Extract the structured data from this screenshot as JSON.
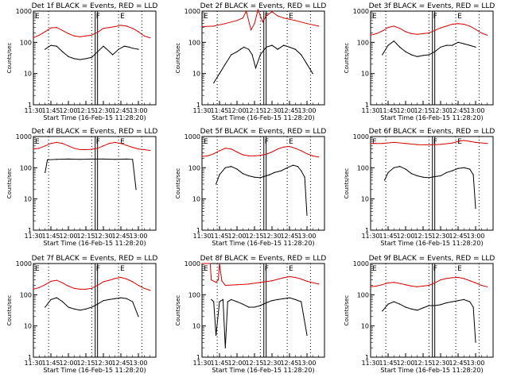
{
  "chart_data": {
    "type": "line",
    "y_scale": "log",
    "ylim": [
      1,
      1000
    ],
    "y_ticks": [
      "1",
      "10",
      "100",
      "1000"
    ],
    "x_ticks": [
      "11:30",
      "11:45",
      "12:00",
      "12:15",
      "12:30",
      "12:45",
      "13:00"
    ],
    "x_range_minutes": [
      0,
      105
    ],
    "xlabel": "Start Time (16-Feb-15 11:28:20)",
    "ylabel": "Counts/sec",
    "markers": {
      "F_label": "F",
      "E_label": "E",
      "dotted_times": [
        "11:43",
        "12:20",
        "12:43",
        "13:03"
      ],
      "solid_times": [
        "12:23",
        "12:25"
      ]
    },
    "colors": {
      "events": "#000000",
      "lld": "#d40000",
      "marker": "#000000"
    },
    "panels": [
      {
        "title": "Det 1f BLACK = Events, RED = LLD",
        "series": [
          {
            "name": "Events",
            "color": "#000000",
            "x": [
              10,
              15,
              20,
              25,
              30,
              35,
              40,
              45,
              50,
              55,
              60,
              62,
              68,
              73,
              78,
              82,
              85,
              90
            ],
            "y": [
              60,
              80,
              75,
              50,
              35,
              30,
              28,
              30,
              33,
              50,
              75,
              65,
              40,
              60,
              75,
              70,
              65,
              60
            ]
          },
          {
            "name": "LLD",
            "color": "#d40000",
            "x": [
              0,
              5,
              10,
              15,
              20,
              25,
              30,
              35,
              40,
              45,
              50,
              55,
              60,
              65,
              70,
              75,
              80,
              85,
              90,
              95,
              100
            ],
            "y": [
              140,
              170,
              220,
              290,
              300,
              240,
              190,
              160,
              150,
              160,
              170,
              210,
              280,
              300,
              320,
              350,
              330,
              280,
              220,
              160,
              140
            ]
          }
        ]
      },
      {
        "title": "Det 2f BLACK = Events, RED = LLD",
        "series": [
          {
            "name": "Events",
            "color": "#000000",
            "x": [
              10,
              15,
              20,
              25,
              30,
              33,
              36,
              40,
              43,
              46,
              50,
              55,
              60,
              65,
              70,
              75,
              80,
              85,
              90,
              95
            ],
            "y": [
              5,
              10,
              20,
              40,
              50,
              60,
              70,
              60,
              40,
              15,
              40,
              70,
              80,
              60,
              80,
              70,
              60,
              40,
              20,
              10
            ]
          },
          {
            "name": "LLD",
            "color": "#d40000",
            "x": [
              0,
              10,
              20,
              30,
              35,
              38,
              42,
              45,
              48,
              52,
              55,
              60,
              65,
              70,
              75,
              80,
              90,
              100
            ],
            "y": [
              320,
              330,
              400,
              500,
              600,
              1000,
              250,
              400,
              1100,
              450,
              700,
              950,
              700,
              600,
              550,
              500,
              400,
              330
            ]
          }
        ]
      },
      {
        "title": "Det 3f BLACK = Events, RED = LLD",
        "series": [
          {
            "name": "Events",
            "color": "#000000",
            "x": [
              10,
              15,
              20,
              25,
              30,
              35,
              40,
              45,
              50,
              55,
              60,
              65,
              70,
              75,
              80,
              85,
              90
            ],
            "y": [
              40,
              80,
              110,
              70,
              50,
              40,
              35,
              38,
              40,
              50,
              70,
              80,
              80,
              100,
              90,
              80,
              70
            ]
          },
          {
            "name": "LLD",
            "color": "#d40000",
            "x": [
              0,
              5,
              10,
              15,
              20,
              25,
              30,
              35,
              40,
              45,
              50,
              55,
              60,
              65,
              70,
              75,
              80,
              85,
              90,
              95,
              100
            ],
            "y": [
              170,
              190,
              230,
              300,
              330,
              280,
              220,
              190,
              180,
              190,
              200,
              240,
              290,
              330,
              380,
              400,
              380,
              330,
              260,
              200,
              170
            ]
          }
        ]
      },
      {
        "title": "Det 4f BLACK = Events, RED = LLD",
        "series": [
          {
            "name": "Events",
            "color": "#000000",
            "x": [
              10,
              12,
              20,
              30,
              40,
              50,
              60,
              70,
              80,
              85,
              88
            ],
            "y": [
              70,
              180,
              185,
              190,
              185,
              190,
              190,
              185,
              190,
              185,
              20
            ]
          },
          {
            "name": "LLD",
            "color": "#d40000",
            "x": [
              0,
              5,
              10,
              15,
              20,
              25,
              30,
              35,
              40,
              45,
              50,
              55,
              60,
              65,
              70,
              75,
              80,
              85,
              90,
              95,
              100
            ],
            "y": [
              400,
              420,
              500,
              600,
              650,
              600,
              500,
              420,
              380,
              380,
              390,
              420,
              500,
              600,
              650,
              600,
              520,
              450,
              400,
              380,
              360
            ]
          }
        ]
      },
      {
        "title": "Det 5f BLACK = Events, RED = LLD",
        "series": [
          {
            "name": "Events",
            "color": "#000000",
            "x": [
              12,
              15,
              20,
              25,
              30,
              35,
              40,
              45,
              50,
              55,
              58,
              62,
              68,
              73,
              78,
              82,
              85,
              88,
              90
            ],
            "y": [
              30,
              60,
              100,
              110,
              90,
              65,
              55,
              50,
              48,
              55,
              60,
              70,
              80,
              100,
              120,
              110,
              80,
              50,
              3
            ]
          },
          {
            "name": "LLD",
            "color": "#d40000",
            "x": [
              0,
              5,
              10,
              15,
              20,
              25,
              30,
              35,
              40,
              45,
              50,
              55,
              60,
              65,
              70,
              75,
              80,
              85,
              90,
              95,
              100
            ],
            "y": [
              230,
              240,
              280,
              350,
              420,
              400,
              320,
              260,
              240,
              240,
              250,
              270,
              320,
              400,
              460,
              480,
              420,
              350,
              280,
              240,
              220
            ]
          }
        ]
      },
      {
        "title": "Det 6f BLACK = Events, RED = LLD",
        "series": [
          {
            "name": "Events",
            "color": "#000000",
            "x": [
              12,
              15,
              20,
              25,
              30,
              35,
              40,
              45,
              50,
              55,
              60,
              65,
              70,
              75,
              80,
              85,
              88,
              90
            ],
            "y": [
              40,
              70,
              100,
              110,
              90,
              65,
              55,
              50,
              48,
              52,
              55,
              70,
              80,
              95,
              100,
              90,
              60,
              5
            ]
          },
          {
            "name": "LLD",
            "color": "#d40000",
            "x": [
              0,
              10,
              20,
              30,
              40,
              50,
              60,
              70,
              75,
              80,
              85,
              90,
              100
            ],
            "y": [
              600,
              600,
              650,
              600,
              550,
              540,
              560,
              620,
              700,
              750,
              700,
              650,
              600
            ]
          }
        ]
      },
      {
        "title": "Det 7f BLACK = Events, RED = LLD",
        "series": [
          {
            "name": "Events",
            "color": "#000000",
            "x": [
              10,
              15,
              20,
              25,
              30,
              35,
              40,
              45,
              50,
              55,
              60,
              65,
              70,
              75,
              80,
              85,
              90
            ],
            "y": [
              40,
              70,
              80,
              60,
              40,
              35,
              32,
              35,
              40,
              50,
              65,
              70,
              75,
              80,
              75,
              60,
              20
            ]
          },
          {
            "name": "LLD",
            "color": "#d40000",
            "x": [
              0,
              5,
              10,
              15,
              20,
              25,
              30,
              35,
              40,
              45,
              50,
              55,
              60,
              65,
              70,
              75,
              80,
              85,
              90,
              95,
              100
            ],
            "y": [
              150,
              170,
              210,
              270,
              290,
              240,
              190,
              160,
              150,
              150,
              160,
              200,
              260,
              290,
              330,
              360,
              320,
              260,
              200,
              160,
              140
            ]
          }
        ]
      },
      {
        "title": "Det 8f BLACK = Events, RED = LLD",
        "series": [
          {
            "name": "Events",
            "color": "#000000",
            "x": [
              8,
              10,
              12,
              15,
              18,
              20,
              22,
              25,
              30,
              35,
              40,
              45,
              50,
              55,
              60,
              65,
              70,
              75,
              80,
              85,
              90
            ],
            "y": [
              70,
              60,
              5,
              60,
              70,
              2,
              60,
              70,
              60,
              50,
              40,
              40,
              45,
              55,
              65,
              70,
              75,
              80,
              70,
              60,
              5
            ]
          },
          {
            "name": "LLD",
            "color": "#d40000",
            "x": [
              0,
              5,
              7,
              8,
              12,
              14,
              15,
              17,
              20,
              30,
              40,
              50,
              60,
              70,
              75,
              80,
              85,
              90,
              100
            ],
            "y": [
              1000,
              1000,
              1000,
              300,
              250,
              300,
              1000,
              280,
              200,
              210,
              220,
              250,
              280,
              350,
              380,
              360,
              320,
              270,
              220
            ]
          }
        ]
      },
      {
        "title": "Det 9f BLACK = Events, RED = LLD",
        "series": [
          {
            "name": "Events",
            "color": "#000000",
            "x": [
              10,
              15,
              20,
              25,
              30,
              35,
              40,
              45,
              50,
              55,
              60,
              65,
              70,
              75,
              80,
              85,
              88,
              90
            ],
            "y": [
              30,
              50,
              60,
              50,
              40,
              35,
              32,
              38,
              45,
              45,
              48,
              55,
              60,
              65,
              70,
              60,
              40,
              3
            ]
          },
          {
            "name": "LLD",
            "color": "#d40000",
            "x": [
              0,
              5,
              10,
              15,
              20,
              25,
              30,
              35,
              40,
              45,
              50,
              55,
              60,
              65,
              70,
              75,
              80,
              85,
              90,
              95,
              100
            ],
            "y": [
              180,
              190,
              210,
              240,
              250,
              230,
              210,
              190,
              180,
              190,
              200,
              240,
              300,
              330,
              350,
              360,
              330,
              280,
              240,
              200,
              180
            ]
          }
        ]
      }
    ]
  }
}
